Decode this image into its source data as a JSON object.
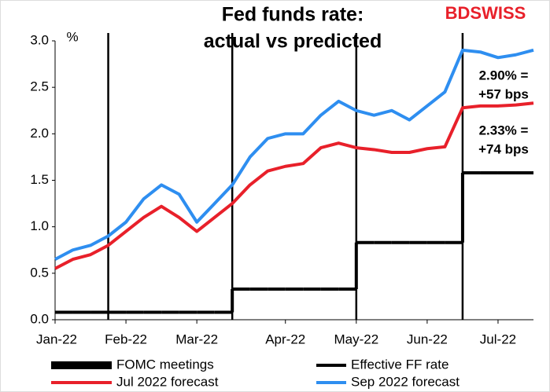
{
  "chart_data": {
    "type": "line",
    "title": [
      "Fed funds rate:",
      "actual vs predicted"
    ],
    "logo": "BDSWISS",
    "y_label": "%",
    "categories": [
      "Jan-22",
      null,
      null,
      null,
      "Feb-22",
      null,
      null,
      null,
      "Mar-22",
      null,
      null,
      null,
      null,
      "Apr-22",
      null,
      null,
      null,
      "May-22",
      null,
      null,
      null,
      "Jun-22",
      null,
      null,
      null,
      "Jul-22",
      null,
      null
    ],
    "series": [
      {
        "name": "FOMC meetings",
        "color": "#000000",
        "type": "vline",
        "at": [
          3,
          10,
          17,
          23
        ]
      },
      {
        "name": "Effective FF rate",
        "color": "#000000",
        "type": "step",
        "values": [
          0.08,
          0.08,
          0.08,
          0.08,
          0.08,
          0.08,
          0.08,
          0.08,
          0.08,
          0.08,
          0.33,
          0.33,
          0.33,
          0.33,
          0.33,
          0.33,
          0.33,
          0.83,
          0.83,
          0.83,
          0.83,
          0.83,
          0.83,
          1.58,
          1.58,
          1.58,
          1.58,
          1.58
        ]
      },
      {
        "name": "Jul 2022 forecast",
        "color": "#e8202a",
        "type": "line",
        "values": [
          0.55,
          0.65,
          0.7,
          0.8,
          0.95,
          1.1,
          1.22,
          1.1,
          0.95,
          1.1,
          1.25,
          1.45,
          1.6,
          1.65,
          1.68,
          1.85,
          1.9,
          1.85,
          1.83,
          1.8,
          1.8,
          1.84,
          1.86,
          2.28,
          2.3,
          2.3,
          2.31,
          2.33
        ]
      },
      {
        "name": "Sep 2022 forecast",
        "color": "#2e8ef0",
        "type": "line",
        "values": [
          0.65,
          0.75,
          0.8,
          0.9,
          1.05,
          1.3,
          1.45,
          1.35,
          1.05,
          1.25,
          1.45,
          1.75,
          1.95,
          2.0,
          2.0,
          2.2,
          2.35,
          2.25,
          2.2,
          2.25,
          2.15,
          2.3,
          2.45,
          2.9,
          2.88,
          2.82,
          2.85,
          2.9
        ]
      }
    ],
    "annotations": [
      "2.90% =",
      "+57 bps",
      "2.33% =",
      "+74 bps"
    ],
    "ylim": [
      0,
      3
    ],
    "yticks": [
      {
        "value": 0,
        "label": "0.0"
      },
      {
        "value": 0.5,
        "label": "0.5"
      },
      {
        "value": 1,
        "label": "1.0"
      },
      {
        "value": 1.5,
        "label": "1.5"
      },
      {
        "value": 2,
        "label": "2.0"
      },
      {
        "value": 2.5,
        "label": "2.5"
      },
      {
        "value": 3,
        "label": "3.0"
      }
    ],
    "grid": false,
    "legend": "bottom"
  }
}
